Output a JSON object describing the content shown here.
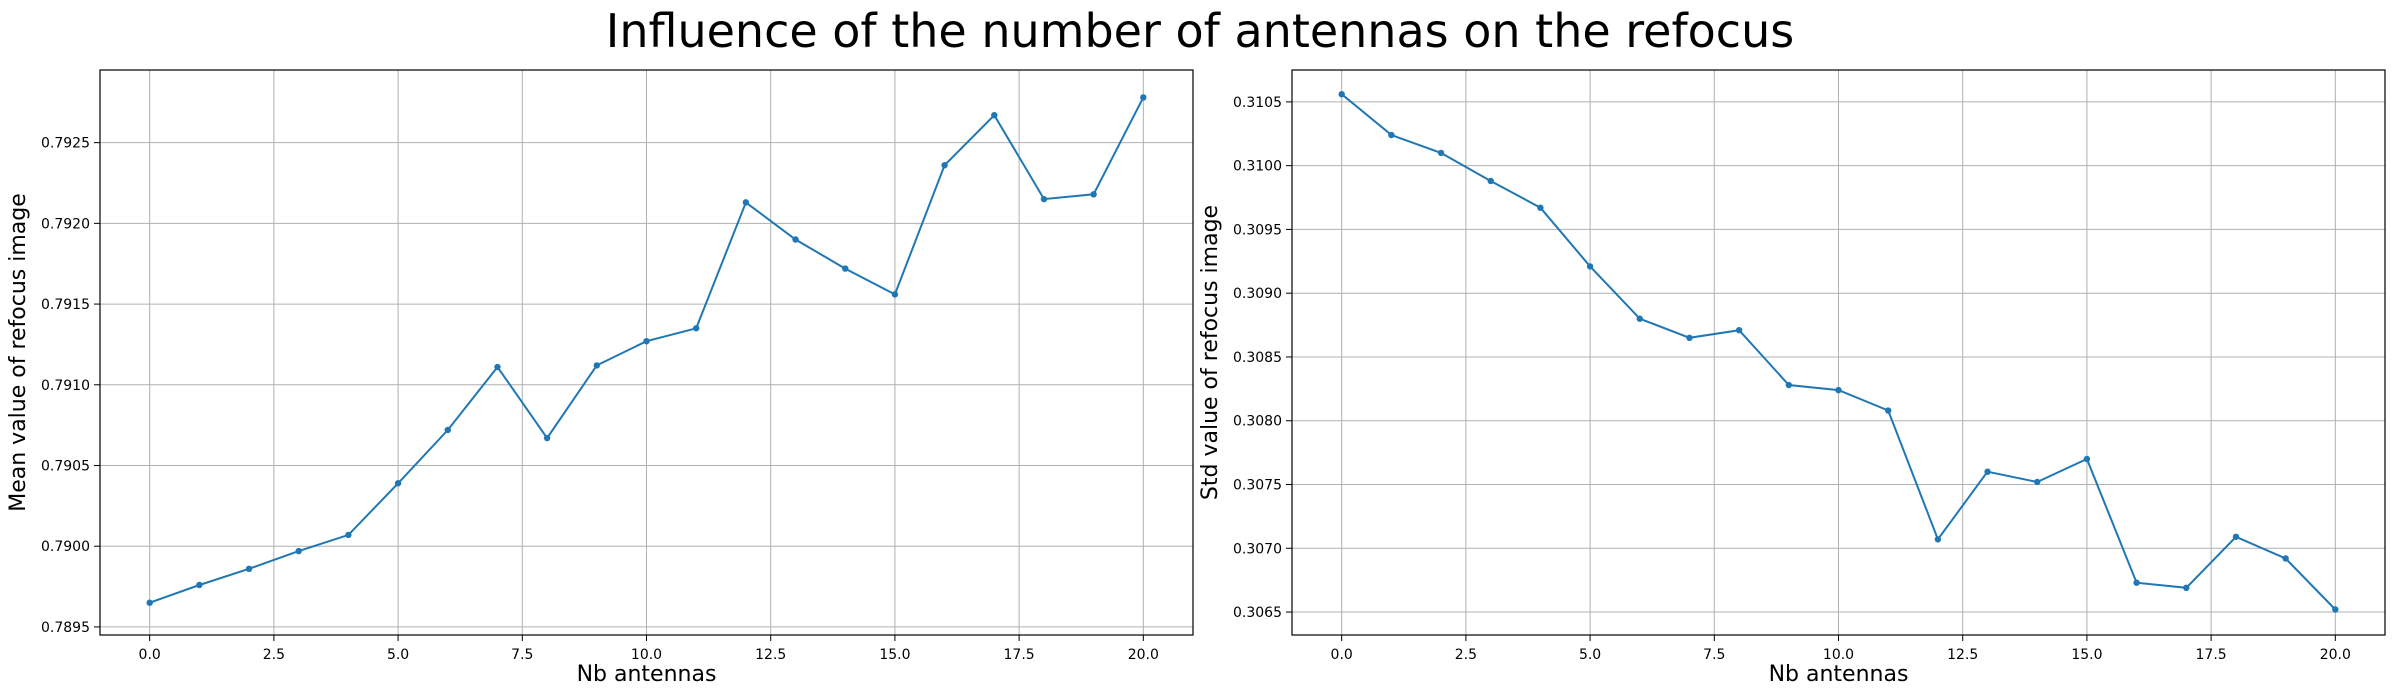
{
  "title": "Influence of the number of antennas on the refocus",
  "chart_data": [
    {
      "type": "line",
      "xlabel": "Nb antennas",
      "ylabel": "Mean value of refocus image",
      "xlim": [
        -1,
        21
      ],
      "ylim": [
        0.78945,
        0.79295
      ],
      "xticks": [
        0,
        2.5,
        5,
        7.5,
        10,
        12.5,
        15,
        17.5,
        20
      ],
      "xtick_labels": [
        "0.0",
        "2.5",
        "5.0",
        "7.5",
        "10.0",
        "12.5",
        "15.0",
        "17.5",
        "20.0"
      ],
      "yticks": [
        0.7895,
        0.79,
        0.7905,
        0.791,
        0.7915,
        0.792,
        0.7925
      ],
      "ytick_labels": [
        "0.7895",
        "0.7900",
        "0.7905",
        "0.7910",
        "0.7915",
        "0.7920",
        "0.7925"
      ],
      "grid": true,
      "color": "#1f77b4",
      "x": [
        0,
        1,
        2,
        3,
        4,
        5,
        6,
        7,
        8,
        9,
        10,
        11,
        12,
        13,
        14,
        15,
        16,
        17,
        18,
        19,
        20
      ],
      "y": [
        0.78965,
        0.78976,
        0.78986,
        0.78997,
        0.79007,
        0.79039,
        0.79072,
        0.79111,
        0.79067,
        0.79112,
        0.79127,
        0.79135,
        0.79213,
        0.7919,
        0.79172,
        0.79156,
        0.79236,
        0.79267,
        0.79215,
        0.79218,
        0.79278
      ]
    },
    {
      "type": "line",
      "xlabel": "Nb antennas",
      "ylabel": "Std value of refocus image",
      "xlim": [
        -1,
        21
      ],
      "ylim": [
        0.30632,
        0.31075
      ],
      "xticks": [
        0,
        2.5,
        5,
        7.5,
        10,
        12.5,
        15,
        17.5,
        20
      ],
      "xtick_labels": [
        "0.0",
        "2.5",
        "5.0",
        "7.5",
        "10.0",
        "12.5",
        "15.0",
        "17.5",
        "20.0"
      ],
      "yticks": [
        0.3065,
        0.307,
        0.3075,
        0.308,
        0.3085,
        0.309,
        0.3095,
        0.31,
        0.3105
      ],
      "ytick_labels": [
        "0.3065",
        "0.3070",
        "0.3075",
        "0.3080",
        "0.3085",
        "0.3090",
        "0.3095",
        "0.3100",
        "0.3105"
      ],
      "grid": true,
      "color": "#1f77b4",
      "x": [
        0,
        1,
        2,
        3,
        4,
        5,
        6,
        7,
        8,
        9,
        10,
        11,
        12,
        13,
        14,
        15,
        16,
        17,
        18,
        19,
        20
      ],
      "y": [
        0.31056,
        0.31024,
        0.3101,
        0.30988,
        0.30967,
        0.30921,
        0.3088,
        0.30865,
        0.30871,
        0.30828,
        0.30824,
        0.30808,
        0.30707,
        0.3076,
        0.30752,
        0.3077,
        0.30673,
        0.30669,
        0.30709,
        0.30692,
        0.30652
      ]
    }
  ]
}
